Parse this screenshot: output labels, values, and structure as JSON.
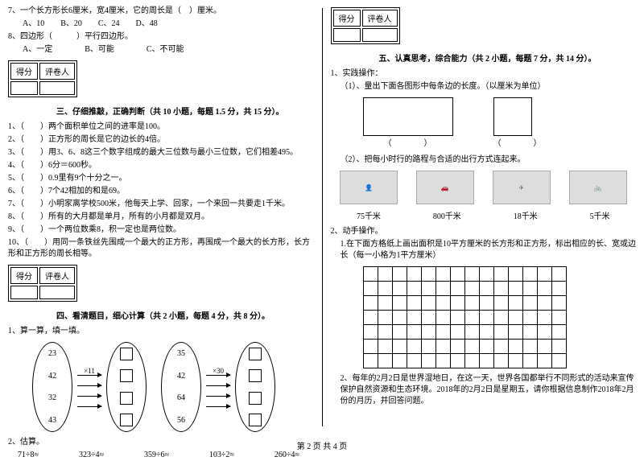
{
  "left": {
    "q7": "7、一个长方形长6厘米，宽4厘米，它的周长是（　）厘米。",
    "q7opts": "A、10　　B、20　　C、24　　D、48",
    "q8": "8、四边形（　　　）平行四边形。",
    "q8opts": "A、一定　　　　B、可能　　　　C、不可能",
    "score_label1": "得分",
    "score_label2": "评卷人",
    "sec3": "三、仔细推敲，正确判断（共 10 小题，每题 1.5 分，共 15 分）。",
    "j1": "1、（　　）两个面积单位之间的进率是100。",
    "j2": "2、（　　）正方形的周长是它的边长的4倍。",
    "j3": "3、（　　）用3、6、8这三个数字组成的最大三位数与最小三位数，它们相差495。",
    "j4": "4、（　　）6分＝600秒。",
    "j5": "5、（　　）0.9里有9个十分之一。",
    "j6": "6、（　　）7个42相加的和是69。",
    "j7": "7、（　　）小明家离学校500米，他每天上学、回家，一个来回一共要走1千米。",
    "j8": "8、（　　）所有的大月都是单月，所有的小月都是双月。",
    "j9": "9、（　　）一个两位数乘8，积一定也是两位数。",
    "j10": "10、（　　）用同一条铁丝先围成一个最大的正方形，再围成一个最大的长方形，长方形和正方形的周长相等。",
    "sec4": "四、看清题目，细心计算（共 2 小题，每题 4 分，共 8 分）。",
    "calc_title": "1、算一算，填一填。",
    "mul1": "×11",
    "mul2": "×30",
    "n1": [
      "23",
      "42",
      "32",
      "43"
    ],
    "n2": [
      "35",
      "42",
      "64",
      "56"
    ],
    "est_title": "2、估算。",
    "est": "71÷8≈　　　　　323÷4≈　　　　　359÷6≈　　　　　103÷2≈　　　　　260÷4≈"
  },
  "right": {
    "score_label1": "得分",
    "score_label2": "评卷人",
    "sec5": "五、认真思考，综合能力（共 2 小题，每题 7 分，共 14 分）。",
    "p1": "1、实践操作：",
    "p1_1": "（1）、量出下面各图形中每条边的长度。（以厘米为单位）",
    "paren": "（　　　　）",
    "p1_2": "（2）、把每小时行的路程与合适的出行方式连起来。",
    "speeds": [
      "75千米",
      "800千米",
      "18千米",
      "5千米"
    ],
    "img_labels": [
      "人",
      "汽车",
      "飞机",
      "自行车"
    ],
    "p2": "2、动手操作。",
    "p2_1": "1.在下面方格纸上画出面积是10平方厘米的长方形和正方形，标出相应的长、宽或边长（每一小格为1平方厘米）",
    "p2_2": "2、每年的2月2日是世界湿地日，在这一天，世界各国都举行不同形式的活动来宣传保护自然资源和生态环境。2018年的2月2日是星期五，请你根据信息制作2018年2月份的月历，并回答问题。"
  },
  "footer": "第 2 页 共 4 页",
  "grid": {
    "cols": 14,
    "rows": 7,
    "cell": 18
  }
}
